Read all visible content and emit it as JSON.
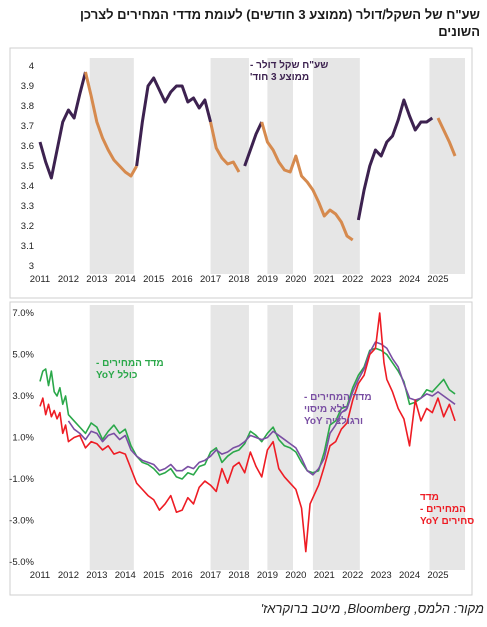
{
  "title": "שע\"ח של השקל/דולר (ממוצע 3 חודשים) לעומת מדדי המחירים לצרכן השונים",
  "source": "מקור: הלמס, Bloomberg, מיטב ברוקראז'",
  "colors": {
    "ils_dark": "#3d2250",
    "ils_orange": "#d68a4e",
    "cpi_all": "#2ba84a",
    "cpi_core": "#7a4fa3",
    "cpi_services": "#ee1c24",
    "shade": "#e6e6e6"
  },
  "chart_data": [
    {
      "type": "line",
      "title": "",
      "xlabel": "",
      "ylabel": "",
      "ylim": [
        3,
        4
      ],
      "yticks": [
        "4",
        "3.9",
        "3.8",
        "3.7",
        "3.6",
        "3.5",
        "3.4",
        "3.3",
        "3.2",
        "3.1",
        "3"
      ],
      "xtick_labels": [
        "2011",
        "2012",
        "2013",
        "2014",
        "2015",
        "2016",
        "2017",
        "2018",
        "2019",
        "2020",
        "2021",
        "2022",
        "2023",
        "2024",
        "2025"
      ],
      "xlim": [
        2011.0,
        2025.95
      ],
      "grid": false,
      "shaded_periods": [
        [
          2012.75,
          2014.3
        ],
        [
          2017.0,
          2018.35
        ],
        [
          2019.0,
          2019.9
        ],
        [
          2020.6,
          2022.25
        ],
        [
          2024.7,
          2025.95
        ]
      ],
      "series": [
        {
          "name": "שע\"ח שקל דולר - ממוצע 3 חוד'",
          "color_note": "dark segments where shekel strengthens/rising, orange segments where it falls",
          "x": [
            2011.0,
            2011.2,
            2011.4,
            2011.6,
            2011.8,
            2012.0,
            2012.2,
            2012.4,
            2012.6,
            2012.8,
            2013.0,
            2013.2,
            2013.4,
            2013.6,
            2013.8,
            2014.0,
            2014.2,
            2014.4,
            2014.6,
            2014.8,
            2015.0,
            2015.2,
            2015.4,
            2015.6,
            2015.8,
            2016.0,
            2016.2,
            2016.4,
            2016.6,
            2016.8,
            2017.0,
            2017.2,
            2017.4,
            2017.6,
            2017.8,
            2018.0,
            2018.2,
            2018.4,
            2018.6,
            2018.8,
            2019.0,
            2019.2,
            2019.4,
            2019.6,
            2019.8,
            2020.0,
            2020.2,
            2020.4,
            2020.6,
            2020.8,
            2021.0,
            2021.2,
            2021.4,
            2021.6,
            2021.8,
            2022.0,
            2022.2,
            2022.4,
            2022.6,
            2022.8,
            2023.0,
            2023.2,
            2023.4,
            2023.6,
            2023.8,
            2024.0,
            2024.2,
            2024.4,
            2024.6,
            2024.8,
            2025.0,
            2025.2,
            2025.4,
            2025.6
          ],
          "y": [
            3.62,
            3.52,
            3.44,
            3.58,
            3.72,
            3.78,
            3.74,
            3.86,
            3.97,
            3.85,
            3.72,
            3.64,
            3.58,
            3.53,
            3.5,
            3.47,
            3.45,
            3.5,
            3.72,
            3.9,
            3.94,
            3.88,
            3.82,
            3.87,
            3.9,
            3.9,
            3.82,
            3.84,
            3.79,
            3.83,
            3.72,
            3.59,
            3.54,
            3.51,
            3.52,
            3.47,
            3.5,
            3.58,
            3.66,
            3.72,
            3.62,
            3.58,
            3.52,
            3.48,
            3.47,
            3.55,
            3.45,
            3.42,
            3.38,
            3.32,
            3.25,
            3.28,
            3.26,
            3.22,
            3.15,
            3.13,
            3.23,
            3.38,
            3.5,
            3.58,
            3.55,
            3.62,
            3.65,
            3.73,
            3.83,
            3.75,
            3.68,
            3.72,
            3.72,
            3.74,
            3.74,
            3.68,
            3.62,
            3.55
          ],
          "segment_break_colors": [
            [
              2011.0,
              2012.6,
              "dark"
            ],
            [
              2012.6,
              2014.4,
              "orange"
            ],
            [
              2014.4,
              2017.0,
              "dark"
            ],
            [
              2017.0,
              2018.1,
              "orange"
            ],
            [
              2018.1,
              2018.8,
              "dark"
            ],
            [
              2018.8,
              2022.1,
              "orange"
            ],
            [
              2022.1,
              2024.9,
              "dark"
            ],
            [
              2024.9,
              2025.6,
              "orange"
            ]
          ]
        }
      ],
      "annotations": [
        {
          "text_lines": [
            "שע\"ח שקל דולר -",
            "ממוצע 3 חוד'"
          ],
          "color": "#3d2250"
        }
      ]
    },
    {
      "type": "line",
      "title": "",
      "xlabel": "",
      "ylabel": "",
      "ylim": [
        -5,
        7
      ],
      "yticks": [
        "7.0%",
        "5.0%",
        "3.0%",
        "1.0%",
        "-1.0%",
        "-3.0%",
        "-5.0%"
      ],
      "xtick_labels": [
        "2011",
        "2012",
        "2013",
        "2014",
        "2015",
        "2016",
        "2017",
        "2018",
        "2019",
        "2020",
        "2021",
        "2022",
        "2023",
        "2024",
        "2025"
      ],
      "xlim": [
        2011.0,
        2025.95
      ],
      "grid": false,
      "shaded_periods": [
        [
          2012.75,
          2014.3
        ],
        [
          2017.0,
          2018.35
        ],
        [
          2019.0,
          2019.9
        ],
        [
          2020.6,
          2022.25
        ],
        [
          2024.7,
          2025.95
        ]
      ],
      "series": [
        {
          "name": "מדד המחירים - כולל YoY",
          "color": "#2ba84a",
          "x": [
            2011.0,
            2011.1,
            2011.2,
            2011.3,
            2011.4,
            2011.5,
            2011.6,
            2011.7,
            2011.8,
            2011.9,
            2012.0,
            2012.2,
            2012.4,
            2012.6,
            2012.8,
            2013.0,
            2013.2,
            2013.4,
            2013.6,
            2013.8,
            2014.0,
            2014.2,
            2014.4,
            2014.6,
            2014.8,
            2015.0,
            2015.2,
            2015.4,
            2015.6,
            2015.8,
            2016.0,
            2016.2,
            2016.4,
            2016.6,
            2016.8,
            2017.0,
            2017.2,
            2017.4,
            2017.6,
            2017.8,
            2018.0,
            2018.2,
            2018.4,
            2018.6,
            2018.8,
            2019.0,
            2019.2,
            2019.4,
            2019.6,
            2019.8,
            2020.0,
            2020.2,
            2020.4,
            2020.6,
            2020.8,
            2021.0,
            2021.2,
            2021.4,
            2021.6,
            2021.8,
            2022.0,
            2022.2,
            2022.4,
            2022.6,
            2022.8,
            2023.0,
            2023.2,
            2023.4,
            2023.6,
            2023.8,
            2024.0,
            2024.2,
            2024.4,
            2024.6,
            2024.8,
            2025.0,
            2025.2,
            2025.4,
            2025.6
          ],
          "y": [
            3.7,
            4.2,
            4.3,
            3.5,
            4.2,
            3.2,
            3.0,
            3.4,
            2.6,
            3.0,
            2.1,
            1.8,
            1.5,
            1.2,
            1.7,
            1.5,
            0.9,
            1.3,
            1.6,
            1.2,
            1.4,
            0.6,
            0.1,
            -0.2,
            -0.3,
            -0.5,
            -0.8,
            -0.7,
            -0.5,
            -0.9,
            -1.0,
            -0.7,
            -0.8,
            -0.4,
            -0.3,
            0.3,
            0.5,
            -0.2,
            0.1,
            0.3,
            0.4,
            0.7,
            1.3,
            1.1,
            0.8,
            1.2,
            1.5,
            0.9,
            0.6,
            0.5,
            0.3,
            -0.2,
            -0.6,
            -0.7,
            -0.6,
            0.3,
            1.6,
            1.8,
            2.4,
            2.5,
            3.4,
            4.0,
            4.4,
            5.2,
            5.3,
            5.2,
            5.0,
            4.6,
            4.2,
            3.7,
            2.6,
            2.7,
            2.9,
            3.3,
            3.2,
            3.5,
            3.8,
            3.3,
            3.1
          ]
        },
        {
          "name": "מדד המחירים - ללא מיסוי ורגולציה YoY",
          "color": "#7a4fa3",
          "x": [
            2012.0,
            2012.2,
            2012.4,
            2012.6,
            2012.8,
            2013.0,
            2013.2,
            2013.4,
            2013.6,
            2013.8,
            2014.0,
            2014.2,
            2014.4,
            2014.6,
            2014.8,
            2015.0,
            2015.2,
            2015.4,
            2015.6,
            2015.8,
            2016.0,
            2016.2,
            2016.4,
            2016.6,
            2016.8,
            2017.0,
            2017.2,
            2017.4,
            2017.6,
            2017.8,
            2018.0,
            2018.2,
            2018.4,
            2018.6,
            2018.8,
            2019.0,
            2019.2,
            2019.4,
            2019.6,
            2019.8,
            2020.0,
            2020.2,
            2020.4,
            2020.6,
            2020.8,
            2021.0,
            2021.2,
            2021.4,
            2021.6,
            2021.8,
            2022.0,
            2022.2,
            2022.4,
            2022.6,
            2022.8,
            2023.0,
            2023.2,
            2023.4,
            2023.6,
            2023.8,
            2024.0,
            2024.2,
            2024.4,
            2024.6,
            2024.8,
            2025.0,
            2025.2,
            2025.4,
            2025.6
          ],
          "y": [
            1.8,
            1.4,
            1.2,
            0.9,
            1.3,
            1.2,
            0.8,
            1.1,
            1.2,
            0.9,
            1.1,
            0.4,
            0.1,
            -0.1,
            -0.2,
            -0.3,
            -0.6,
            -0.5,
            -0.3,
            -0.6,
            -0.6,
            -0.4,
            -0.5,
            -0.2,
            -0.1,
            0.1,
            0.4,
            0.2,
            0.3,
            0.5,
            0.6,
            0.8,
            1.1,
            1.0,
            0.9,
            1.0,
            1.3,
            1.1,
            0.9,
            0.7,
            0.5,
            0.0,
            -0.6,
            -0.8,
            -0.5,
            0.0,
            1.2,
            1.6,
            2.2,
            2.4,
            3.2,
            3.8,
            4.3,
            5.1,
            5.6,
            5.5,
            5.3,
            4.8,
            4.4,
            3.6,
            2.9,
            2.8,
            2.9,
            3.1,
            3.0,
            3.2,
            3.0,
            2.8,
            2.6
          ]
        },
        {
          "name": "מדד המחירים - סחירים YoY",
          "color": "#ee1c24",
          "x": [
            2011.0,
            2011.1,
            2011.2,
            2011.3,
            2011.4,
            2011.5,
            2011.6,
            2011.7,
            2011.8,
            2011.9,
            2012.0,
            2012.2,
            2012.4,
            2012.6,
            2012.8,
            2013.0,
            2013.2,
            2013.4,
            2013.6,
            2013.8,
            2014.0,
            2014.2,
            2014.4,
            2014.6,
            2014.8,
            2015.0,
            2015.2,
            2015.4,
            2015.6,
            2015.8,
            2016.0,
            2016.2,
            2016.4,
            2016.6,
            2016.8,
            2017.0,
            2017.2,
            2017.4,
            2017.6,
            2017.8,
            2018.0,
            2018.2,
            2018.4,
            2018.6,
            2018.8,
            2019.0,
            2019.2,
            2019.4,
            2019.6,
            2019.8,
            2020.0,
            2020.2,
            2020.35,
            2020.5,
            2020.6,
            2020.8,
            2021.0,
            2021.2,
            2021.4,
            2021.6,
            2021.8,
            2022.0,
            2022.2,
            2022.4,
            2022.6,
            2022.8,
            2022.95,
            2023.1,
            2023.2,
            2023.4,
            2023.6,
            2023.8,
            2024.0,
            2024.2,
            2024.4,
            2024.6,
            2024.8,
            2025.0,
            2025.2,
            2025.4,
            2025.6
          ],
          "y": [
            2.5,
            2.9,
            2.1,
            2.6,
            2.0,
            2.3,
            1.9,
            2.2,
            1.2,
            1.6,
            0.8,
            1.0,
            1.1,
            0.5,
            0.8,
            0.7,
            0.4,
            0.6,
            0.2,
            0.3,
            0.2,
            -0.5,
            -1.2,
            -1.5,
            -1.8,
            -2.0,
            -2.5,
            -2.2,
            -1.8,
            -2.6,
            -2.5,
            -1.9,
            -2.2,
            -1.4,
            -1.1,
            -1.3,
            -1.6,
            -0.5,
            -1.2,
            -0.4,
            -0.2,
            -0.7,
            0.3,
            -0.4,
            -0.9,
            0.4,
            0.8,
            -0.5,
            -0.9,
            -1.2,
            -1.5,
            -2.4,
            -4.5,
            -2.2,
            -1.9,
            -1.3,
            -0.4,
            0.6,
            0.8,
            1.4,
            1.7,
            2.8,
            3.6,
            4.0,
            5.0,
            5.3,
            7.0,
            4.6,
            3.8,
            3.2,
            2.4,
            1.9,
            0.6,
            2.8,
            1.8,
            2.4,
            2.2,
            2.9,
            2.0,
            2.6,
            1.8
          ]
        }
      ],
      "annotations": [
        {
          "text_lines": [
            "מדד המחירים -",
            "כולל YoY"
          ],
          "color": "#2ba84a"
        },
        {
          "text_lines": [
            "מדד המחירים -",
            "ללא מיסוי",
            "ורגולציה YoY"
          ],
          "color": "#7a4fa3"
        },
        {
          "text_lines": [
            "מדד",
            "המחירים -",
            "סחירים YoY"
          ],
          "color": "#ee1c24"
        }
      ]
    }
  ]
}
